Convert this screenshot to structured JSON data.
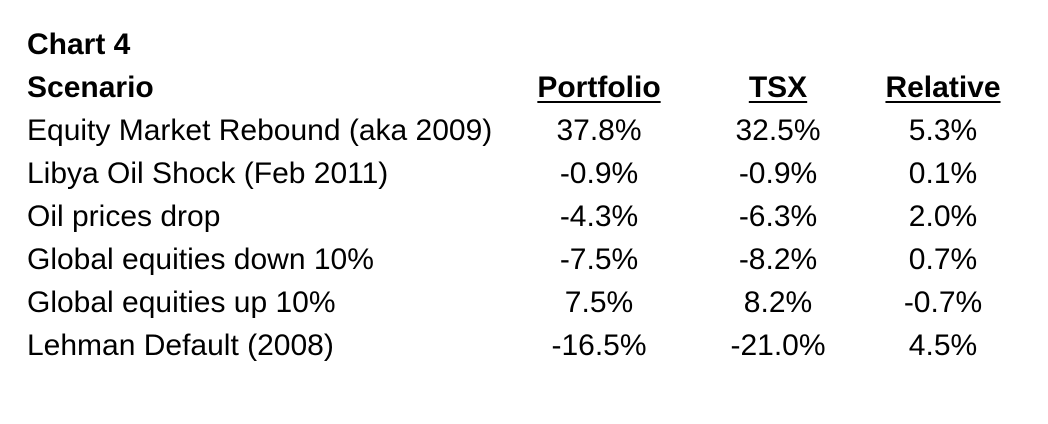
{
  "chart_data": {
    "type": "table",
    "title": "Chart 4",
    "columns": [
      "Scenario",
      "Portfolio",
      "TSX",
      "Relative"
    ],
    "rows": [
      [
        "Equity Market Rebound (aka 2009)",
        "37.8%",
        "32.5%",
        "5.3%"
      ],
      [
        "Libya Oil Shock (Feb 2011)",
        "-0.9%",
        "-0.9%",
        "0.1%"
      ],
      [
        "Oil prices drop",
        "-4.3%",
        "-6.3%",
        "2.0%"
      ],
      [
        "Global equities down 10%",
        "-7.5%",
        "-8.2%",
        "0.7%"
      ],
      [
        "Global equities up 10%",
        "7.5%",
        "8.2%",
        "-0.7%"
      ],
      [
        "Lehman Default (2008)",
        "-16.5%",
        "-21.0%",
        "4.5%"
      ]
    ],
    "numeric": {
      "portfolio_pct": [
        37.8,
        -0.9,
        -4.3,
        -7.5,
        7.5,
        -16.5
      ],
      "tsx_pct": [
        32.5,
        -0.9,
        -6.3,
        -8.2,
        8.2,
        -21.0
      ],
      "relative_pct": [
        5.3,
        0.1,
        2.0,
        0.7,
        -0.7,
        4.5
      ]
    },
    "layout_hints": {
      "header_style": "bold underlined",
      "value_alignment": "center",
      "scenario_alignment": "left",
      "grid_lines": false
    }
  },
  "colors": {
    "text": "#000000",
    "background": "#ffffff"
  }
}
